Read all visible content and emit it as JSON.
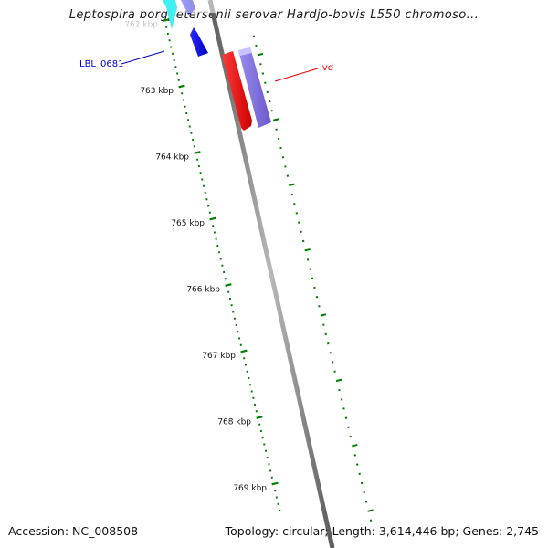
{
  "title": "Leptospira borgpetersenii serovar Hardjo-bovis L550 chromoso...",
  "footer": {
    "accession": "Accession: NC_008508",
    "summary": "Topology: circular; Length: 3,614,446 bp; Genes: 2,745"
  },
  "ruler": {
    "color": "#008000",
    "labels": [
      "762 kbp",
      "763 kbp",
      "764 kbp",
      "765 kbp",
      "766 kbp",
      "767 kbp",
      "768 kbp",
      "769 kbp"
    ]
  },
  "backbone_color": "#808080",
  "genes": [
    {
      "name": "LBL_0681",
      "label": "LBL_0681",
      "color": "#0000ee",
      "label_color": "#0000cc"
    },
    {
      "name": "ivd",
      "label": "ivd",
      "color": "#ee0000",
      "label_color": "#ee0000"
    },
    {
      "name": "ivd-partner",
      "label": "",
      "color": "#7b68d8"
    },
    {
      "name": "cyan-gene",
      "label": "",
      "color": "#00e0e0"
    }
  ]
}
